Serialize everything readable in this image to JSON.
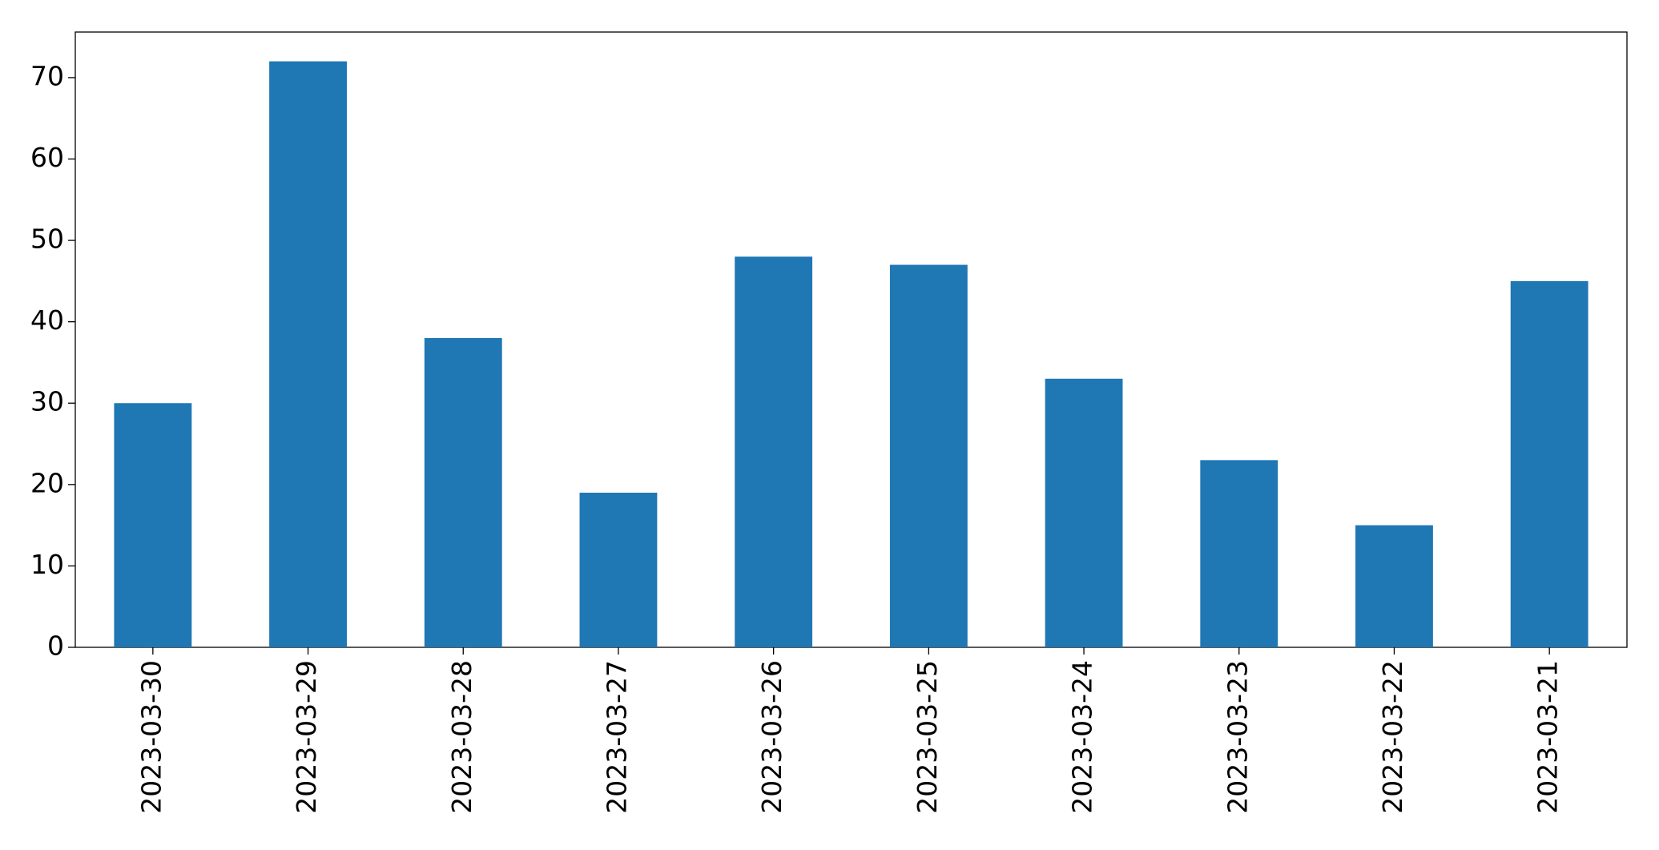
{
  "chart_data": {
    "type": "bar",
    "categories": [
      "2023-03-30",
      "2023-03-29",
      "2023-03-28",
      "2023-03-27",
      "2023-03-26",
      "2023-03-25",
      "2023-03-24",
      "2023-03-23",
      "2023-03-22",
      "2023-03-21"
    ],
    "values": [
      30,
      72,
      38,
      19,
      48,
      47,
      33,
      23,
      15,
      45
    ],
    "color": "#1f77b4",
    "ylim": [
      0,
      75.6
    ],
    "yticks": [
      0,
      10,
      20,
      30,
      40,
      50,
      60,
      70
    ],
    "grid": false
  }
}
